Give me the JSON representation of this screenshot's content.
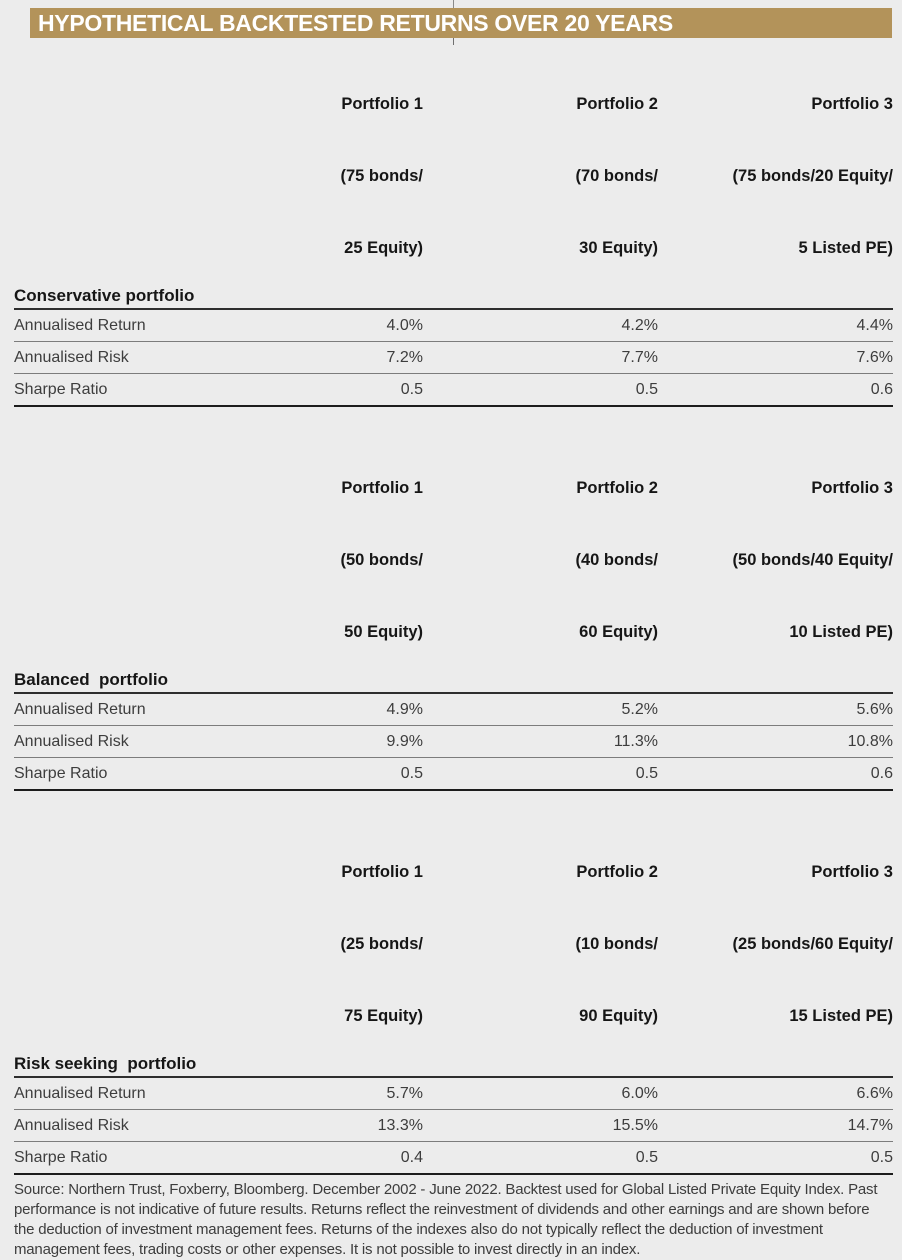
{
  "title": "HYPOTHETICAL BACKTESTED RETURNS OVER 20 YEARS",
  "colors": {
    "gold_bar": "#b3935a",
    "page_background": "#ececec",
    "title_text": "#ffffff",
    "heading_text": "#161616",
    "body_text": "#3d3d3d"
  },
  "sections": [
    {
      "label": "Conservative portfolio",
      "columns": [
        {
          "name": "Portfolio 1",
          "alloc1": "(75 bonds/",
          "alloc2": "25 Equity)"
        },
        {
          "name": "Portfolio 2",
          "alloc1": "(70 bonds/",
          "alloc2": "30 Equity)"
        },
        {
          "name": "Portfolio 3",
          "alloc1": "(75 bonds/20 Equity/",
          "alloc2": "5 Listed PE)"
        }
      ],
      "rows": [
        {
          "label": "Annualised Return",
          "values": [
            "4.0%",
            "4.2%",
            "4.4%"
          ]
        },
        {
          "label": "Annualised Risk",
          "values": [
            "7.2%",
            "7.7%",
            "7.6%"
          ]
        },
        {
          "label": "Sharpe Ratio",
          "values": [
            "0.5",
            "0.5",
            "0.6"
          ]
        }
      ]
    },
    {
      "label": "Balanced  portfolio",
      "columns": [
        {
          "name": "Portfolio 1",
          "alloc1": "(50 bonds/",
          "alloc2": "50 Equity)"
        },
        {
          "name": "Portfolio 2",
          "alloc1": "(40 bonds/",
          "alloc2": "60 Equity)"
        },
        {
          "name": "Portfolio 3",
          "alloc1": "(50 bonds/40 Equity/",
          "alloc2": "10 Listed PE)"
        }
      ],
      "rows": [
        {
          "label": "Annualised Return",
          "values": [
            "4.9%",
            "5.2%",
            "5.6%"
          ]
        },
        {
          "label": "Annualised Risk",
          "values": [
            "9.9%",
            "11.3%",
            "10.8%"
          ]
        },
        {
          "label": "Sharpe Ratio",
          "values": [
            "0.5",
            "0.5",
            "0.6"
          ]
        }
      ]
    },
    {
      "label": "Risk seeking  portfolio",
      "columns": [
        {
          "name": "Portfolio 1",
          "alloc1": "(25 bonds/",
          "alloc2": "75 Equity)"
        },
        {
          "name": "Portfolio 2",
          "alloc1": "(10 bonds/",
          "alloc2": "90 Equity)"
        },
        {
          "name": "Portfolio 3",
          "alloc1": "(25 bonds/60 Equity/",
          "alloc2": "15 Listed PE)"
        }
      ],
      "rows": [
        {
          "label": "Annualised Return",
          "values": [
            "5.7%",
            "6.0%",
            "6.6%"
          ]
        },
        {
          "label": "Annualised Risk",
          "values": [
            "13.3%",
            "15.5%",
            "14.7%"
          ]
        },
        {
          "label": "Sharpe Ratio",
          "values": [
            "0.4",
            "0.5",
            "0.5"
          ]
        }
      ]
    }
  ],
  "footnote": {
    "text": "Source: Northern Trust, Foxberry, Bloomberg. December 2002 - June 2022. Backtest used for Global Listed Private Equity Index. Past performance is not indicative of future results. Returns reflect the reinvestment of dividends and other earnings and are shown before the deduction of investment management fees. Returns of the indexes also do not typically reflect the deduction of investment management fees, trading costs or other expenses. It is not possible to invest directly in an index."
  }
}
